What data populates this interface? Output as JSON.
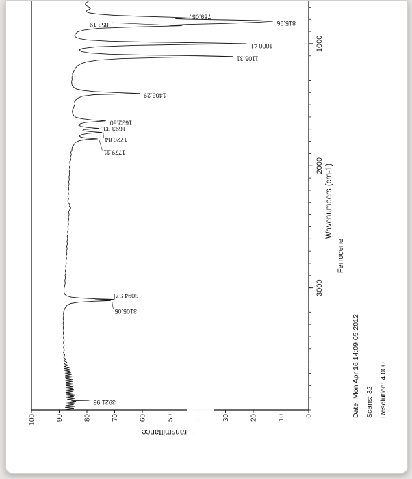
{
  "colors": {
    "ink": "#1c1c1c",
    "paper": "#ffffff",
    "background": "#e7e5e2"
  },
  "chart_data": {
    "type": "line",
    "title": "Ferrocene",
    "xlabel": "Wavenumbers (cm-1)",
    "ylabel": "%Transmittance",
    "x_range": [
      4000,
      580
    ],
    "y_range": [
      0,
      100
    ],
    "x_ticks": [
      {
        "value": 3000,
        "label": "3000"
      },
      {
        "value": 2000,
        "label": "2000"
      },
      {
        "value": 1000,
        "label": "1000"
      }
    ],
    "x_minor_step": 100,
    "y_tick_labels": [
      "100",
      "90",
      "80",
      "70",
      "60",
      "50",
      "40",
      "30",
      "20",
      "10",
      "0"
    ],
    "footer": {
      "date": "Date: Mon Apr 16 14:09:05 2012",
      "scans": "Scans: 32",
      "resolution": "Resolution:  4.000"
    },
    "peaks": [
      {
        "label": "3921.95",
        "wn": 3921.95,
        "t": 79.2
      },
      {
        "label": "3105.05",
        "wn": 3105.05,
        "t": 71.5,
        "lwn": 3175,
        "lt": 70
      },
      {
        "label": "3094.57",
        "wn": 3094.57,
        "t": 70.5,
        "lwn": 3048,
        "lt": 69.5
      },
      {
        "label": "1779.11",
        "wn": 1779.11,
        "t": 76.2,
        "lwn": 1872,
        "lt": 74
      },
      {
        "label": "1726.84",
        "wn": 1726.84,
        "t": 74.6,
        "lwn": 1768,
        "lt": 73.5
      },
      {
        "label": "1693.33",
        "wn": 1693.33,
        "t": 75.6,
        "lwn": 1678,
        "lt": 74
      },
      {
        "label": "1632.50",
        "wn": 1632.5,
        "t": 73.2
      },
      {
        "label": "1408.29",
        "wn": 1408.29,
        "t": 61
      },
      {
        "label": "1105.31",
        "wn": 1105.31,
        "t": 27.5
      },
      {
        "label": "1000.41",
        "wn": 1000.41,
        "t": 22.5
      },
      {
        "label": "853.19",
        "wn": 853.19,
        "t": 46,
        "lwn": 828,
        "lt": 79
      },
      {
        "label": "815.96",
        "wn": 815.96,
        "t": 13
      },
      {
        "label": "789.05",
        "wn": 789.05,
        "t": 43.5,
        "lwn": 762,
        "lt": 42
      }
    ],
    "trace": [
      [
        4000,
        85.5
      ],
      [
        3993,
        87.5
      ],
      [
        3986,
        84.8
      ],
      [
        3979,
        87.8
      ],
      [
        3972,
        84.5
      ],
      [
        3965,
        87.6
      ],
      [
        3958,
        84.9
      ],
      [
        3951,
        87.4
      ],
      [
        3944,
        84.6
      ],
      [
        3937,
        87.2
      ],
      [
        3930,
        84.0
      ],
      [
        3925,
        85.5
      ],
      [
        3921.95,
        79.2
      ],
      [
        3918,
        84.5
      ],
      [
        3913,
        87.0
      ],
      [
        3906,
        84.5
      ],
      [
        3899,
        87.3
      ],
      [
        3892,
        84.8
      ],
      [
        3885,
        87.5
      ],
      [
        3878,
        84.6
      ],
      [
        3871,
        87.4
      ],
      [
        3864,
        84.9
      ],
      [
        3857,
        87.6
      ],
      [
        3850,
        85.0
      ],
      [
        3843,
        87.4
      ],
      [
        3836,
        84.8
      ],
      [
        3829,
        87.5
      ],
      [
        3822,
        85.1
      ],
      [
        3815,
        87.6
      ],
      [
        3808,
        85.0
      ],
      [
        3801,
        87.4
      ],
      [
        3794,
        85.2
      ],
      [
        3787,
        87.6
      ],
      [
        3780,
        85.1
      ],
      [
        3773,
        87.5
      ],
      [
        3766,
        85.3
      ],
      [
        3759,
        87.7
      ],
      [
        3752,
        85.2
      ],
      [
        3745,
        87.6
      ],
      [
        3738,
        85.5
      ],
      [
        3731,
        87.8
      ],
      [
        3724,
        85.4
      ],
      [
        3717,
        87.7
      ],
      [
        3710,
        85.6
      ],
      [
        3703,
        87.9
      ],
      [
        3696,
        85.8
      ],
      [
        3689,
        88.0
      ],
      [
        3682,
        86.0
      ],
      [
        3675,
        88.1
      ],
      [
        3668,
        86.2
      ],
      [
        3661,
        88.2
      ],
      [
        3654,
        86.4
      ],
      [
        3645,
        88.2
      ],
      [
        3634,
        86.8
      ],
      [
        3622,
        88.3
      ],
      [
        3610,
        87.2
      ],
      [
        3598,
        88.4
      ],
      [
        3585,
        87.6
      ],
      [
        3570,
        88.4
      ],
      [
        3550,
        88.0
      ],
      [
        3530,
        88.5
      ],
      [
        3510,
        88.1
      ],
      [
        3490,
        88.5
      ],
      [
        3470,
        88.2
      ],
      [
        3450,
        88.5
      ],
      [
        3430,
        88.2
      ],
      [
        3410,
        88.5
      ],
      [
        3390,
        88.3
      ],
      [
        3370,
        88.6
      ],
      [
        3350,
        88.3
      ],
      [
        3330,
        88.6
      ],
      [
        3310,
        88.4
      ],
      [
        3290,
        88.6
      ],
      [
        3270,
        88.4
      ],
      [
        3250,
        88.6
      ],
      [
        3230,
        88.4
      ],
      [
        3210,
        88.5
      ],
      [
        3190,
        88.3
      ],
      [
        3170,
        88.0
      ],
      [
        3155,
        87.6
      ],
      [
        3140,
        87.0
      ],
      [
        3128,
        85.8
      ],
      [
        3118,
        83.0
      ],
      [
        3110,
        77.5
      ],
      [
        3105.05,
        71.5
      ],
      [
        3101,
        75.5
      ],
      [
        3098,
        77.0
      ],
      [
        3094.57,
        70.5
      ],
      [
        3090,
        76.5
      ],
      [
        3084,
        82.0
      ],
      [
        3076,
        85.5
      ],
      [
        3066,
        87.2
      ],
      [
        3054,
        87.9
      ],
      [
        3040,
        88.2
      ],
      [
        3020,
        88.3
      ],
      [
        3000,
        88.2
      ],
      [
        2980,
        88.0
      ],
      [
        2960,
        87.8
      ],
      [
        2940,
        88.0
      ],
      [
        2920,
        87.7
      ],
      [
        2900,
        87.9
      ],
      [
        2880,
        87.6
      ],
      [
        2860,
        87.8
      ],
      [
        2840,
        87.5
      ],
      [
        2820,
        87.7
      ],
      [
        2800,
        87.4
      ],
      [
        2780,
        87.6
      ],
      [
        2760,
        87.3
      ],
      [
        2740,
        87.5
      ],
      [
        2720,
        87.2
      ],
      [
        2700,
        87.4
      ],
      [
        2680,
        87.1
      ],
      [
        2660,
        87.3
      ],
      [
        2640,
        87.0
      ],
      [
        2620,
        87.2
      ],
      [
        2600,
        86.9
      ],
      [
        2580,
        87.1
      ],
      [
        2560,
        86.8
      ],
      [
        2540,
        87.0
      ],
      [
        2520,
        86.7
      ],
      [
        2500,
        86.9
      ],
      [
        2480,
        86.6
      ],
      [
        2460,
        86.8
      ],
      [
        2440,
        86.5
      ],
      [
        2420,
        86.7
      ],
      [
        2400,
        86.4
      ],
      [
        2380,
        86.6
      ],
      [
        2360,
        86.2
      ],
      [
        2345,
        85.8
      ],
      [
        2332,
        86.3
      ],
      [
        2320,
        86.0
      ],
      [
        2305,
        86.6
      ],
      [
        2290,
        86.9
      ],
      [
        2270,
        86.6
      ],
      [
        2250,
        86.9
      ],
      [
        2230,
        86.6
      ],
      [
        2210,
        86.8
      ],
      [
        2190,
        86.5
      ],
      [
        2170,
        86.7
      ],
      [
        2150,
        86.4
      ],
      [
        2130,
        86.6
      ],
      [
        2110,
        86.3
      ],
      [
        2090,
        86.5
      ],
      [
        2070,
        86.2
      ],
      [
        2050,
        86.4
      ],
      [
        2030,
        86.1
      ],
      [
        2010,
        86.3
      ],
      [
        1990,
        86.0
      ],
      [
        1970,
        86.2
      ],
      [
        1950,
        85.8
      ],
      [
        1930,
        86.0
      ],
      [
        1910,
        85.6
      ],
      [
        1890,
        85.8
      ],
      [
        1870,
        85.4
      ],
      [
        1850,
        85.3
      ],
      [
        1830,
        84.8
      ],
      [
        1810,
        84.2
      ],
      [
        1795,
        82.8
      ],
      [
        1785,
        80.5
      ],
      [
        1779.11,
        76.2
      ],
      [
        1773,
        80.0
      ],
      [
        1765,
        82.2
      ],
      [
        1755,
        82.8
      ],
      [
        1745,
        81.8
      ],
      [
        1735,
        79.5
      ],
      [
        1726.84,
        74.6
      ],
      [
        1720,
        79.0
      ],
      [
        1712,
        81.5
      ],
      [
        1703,
        81.0
      ],
      [
        1693.33,
        75.6
      ],
      [
        1687,
        79.5
      ],
      [
        1678,
        82.0
      ],
      [
        1668,
        83.0
      ],
      [
        1656,
        82.4
      ],
      [
        1645,
        80.5
      ],
      [
        1632.5,
        73.2
      ],
      [
        1624,
        78.5
      ],
      [
        1614,
        82.0
      ],
      [
        1602,
        84.0
      ],
      [
        1588,
        84.8
      ],
      [
        1572,
        85.1
      ],
      [
        1556,
        85.3
      ],
      [
        1540,
        85.1
      ],
      [
        1524,
        84.8
      ],
      [
        1508,
        84.6
      ],
      [
        1492,
        84.3
      ],
      [
        1476,
        84.5
      ],
      [
        1460,
        84.0
      ],
      [
        1445,
        83.2
      ],
      [
        1430,
        81.5
      ],
      [
        1418,
        77.5
      ],
      [
        1408.29,
        61.0
      ],
      [
        1400,
        70.0
      ],
      [
        1392,
        77.5
      ],
      [
        1382,
        81.5
      ],
      [
        1370,
        83.8
      ],
      [
        1356,
        84.8
      ],
      [
        1340,
        85.3
      ],
      [
        1324,
        85.5
      ],
      [
        1308,
        85.5
      ],
      [
        1292,
        85.3
      ],
      [
        1276,
        85.4
      ],
      [
        1260,
        85.1
      ],
      [
        1244,
        85.2
      ],
      [
        1228,
        84.8
      ],
      [
        1212,
        84.4
      ],
      [
        1196,
        84.0
      ],
      [
        1180,
        83.3
      ],
      [
        1164,
        82.2
      ],
      [
        1148,
        80.0
      ],
      [
        1134,
        76.0
      ],
      [
        1122,
        68.0
      ],
      [
        1112,
        52.0
      ],
      [
        1105.31,
        27.5
      ],
      [
        1100,
        38.0
      ],
      [
        1094,
        58.0
      ],
      [
        1086,
        72.0
      ],
      [
        1076,
        79.0
      ],
      [
        1064,
        82.0
      ],
      [
        1050,
        82.8
      ],
      [
        1038,
        81.5
      ],
      [
        1026,
        77.0
      ],
      [
        1014,
        63.0
      ],
      [
        1005,
        40.0
      ],
      [
        1000.41,
        22.5
      ],
      [
        995,
        35.0
      ],
      [
        988,
        56.0
      ],
      [
        980,
        72.0
      ],
      [
        970,
        79.5
      ],
      [
        958,
        82.8
      ],
      [
        944,
        84.2
      ],
      [
        930,
        84.4
      ],
      [
        916,
        84.0
      ],
      [
        902,
        83.2
      ],
      [
        888,
        81.0
      ],
      [
        874,
        76.0
      ],
      [
        862,
        62.0
      ],
      [
        853.19,
        46.0
      ],
      [
        848,
        50.0
      ],
      [
        842,
        44.0
      ],
      [
        834,
        30.0
      ],
      [
        824,
        18.0
      ],
      [
        815.96,
        13.0
      ],
      [
        810,
        18.0
      ],
      [
        804,
        30.0
      ],
      [
        799,
        44.0
      ],
      [
        796,
        48.0
      ],
      [
        789.05,
        43.5
      ],
      [
        783,
        50.0
      ],
      [
        776,
        60.0
      ],
      [
        768,
        70.0
      ],
      [
        758,
        76.0
      ],
      [
        748,
        79.0
      ],
      [
        738,
        80.3
      ],
      [
        728,
        80.0
      ],
      [
        718,
        79.2
      ],
      [
        708,
        78.6
      ],
      [
        698,
        79.4
      ],
      [
        688,
        80.2
      ],
      [
        676,
        80.6
      ],
      [
        664,
        80.2
      ],
      [
        652,
        79.4
      ],
      [
        640,
        78.8
      ],
      [
        628,
        79.6
      ],
      [
        616,
        78.6
      ],
      [
        604,
        79.2
      ],
      [
        592,
        78.2
      ],
      [
        580,
        78.8
      ]
    ]
  }
}
